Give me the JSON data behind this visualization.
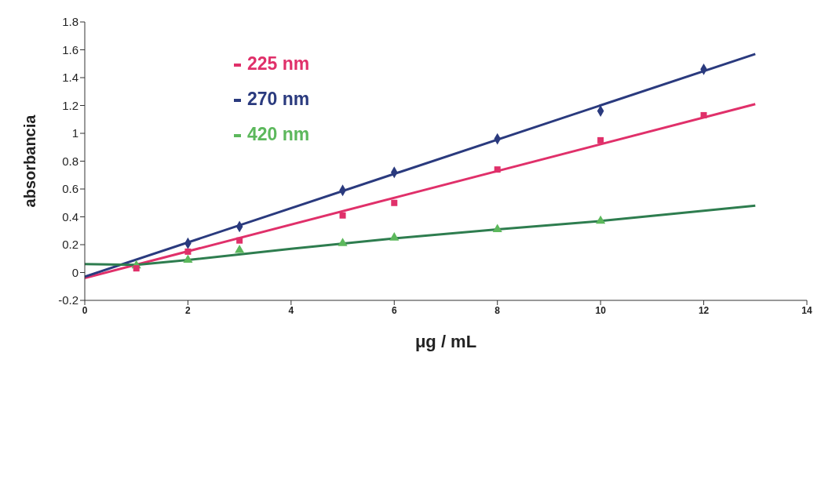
{
  "chart_data": {
    "type": "scatter",
    "xlabel": "μg / mL",
    "ylabel": "absorbancia",
    "xlim": [
      0,
      14
    ],
    "xticks": [
      0,
      2,
      4,
      6,
      8,
      10,
      12,
      14
    ],
    "ylim": [
      -0.2,
      1.8
    ],
    "yticks": [
      -0.2,
      0,
      0.2,
      0.4,
      0.6,
      0.8,
      1,
      1.2,
      1.4,
      1.6,
      1.8
    ],
    "grid": false,
    "legend": "top left",
    "series": [
      {
        "name": "225 nm",
        "color": "#e0306a",
        "marker": "square",
        "x": [
          1,
          2,
          3,
          5,
          6,
          8,
          10,
          12
        ],
        "values": [
          0.03,
          0.15,
          0.23,
          0.41,
          0.5,
          0.74,
          0.95,
          1.13
        ]
      },
      {
        "name": "270 nm",
        "color": "#2a3a7e",
        "marker": "diamond",
        "x": [
          2,
          3,
          5,
          6,
          8,
          10,
          12
        ],
        "values": [
          0.21,
          0.33,
          0.59,
          0.72,
          0.96,
          1.16,
          1.46
        ]
      },
      {
        "name": "420 nm",
        "color": "#5cb85c",
        "marker": "triangle",
        "x": [
          1,
          2,
          3,
          5,
          6,
          8,
          10
        ],
        "values": [
          0.05,
          0.09,
          0.16,
          0.21,
          0.25,
          0.31,
          0.37
        ]
      },
      {
        "type": "line",
        "color": "#e0306a",
        "marker": "none",
        "x": [
          0,
          13
        ],
        "values": [
          -0.04,
          1.21
        ]
      },
      {
        "type": "line",
        "color": "#2a3a7e",
        "marker": "none",
        "x": [
          0,
          13
        ],
        "values": [
          -0.03,
          1.57
        ]
      },
      {
        "type": "line",
        "color": "#2e7d4f",
        "marker": "none",
        "x": [
          0,
          1,
          2,
          4,
          6,
          8,
          10,
          13
        ],
        "values": [
          0.06,
          0.055,
          0.09,
          0.17,
          0.245,
          0.31,
          0.37,
          0.48
        ]
      }
    ]
  }
}
